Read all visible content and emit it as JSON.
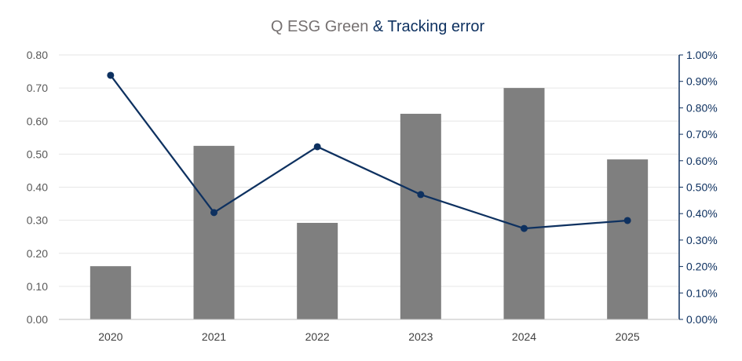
{
  "chart_data": {
    "type": "bar+line",
    "title_part1": "Q ESG Green",
    "title_part2": "& Tracking error",
    "categories": [
      "2020",
      "2021",
      "2022",
      "2023",
      "2024",
      "2025"
    ],
    "series": [
      {
        "type": "bar",
        "axis": "left",
        "color": "#7f7f7f",
        "values": [
          0.161,
          0.525,
          0.292,
          0.622,
          0.7,
          0.484
        ]
      },
      {
        "type": "line",
        "axis": "right",
        "color": "#0e3160",
        "values": [
          0.923,
          0.404,
          0.653,
          0.472,
          0.344,
          0.374
        ]
      }
    ],
    "y_left": {
      "ylim": [
        0,
        0.8
      ],
      "ticks": [
        "0.00",
        "0.10",
        "0.20",
        "0.30",
        "0.40",
        "0.50",
        "0.60",
        "0.70",
        "0.80"
      ]
    },
    "y_right": {
      "ylim": [
        0,
        1.0
      ],
      "unit": "%",
      "ticks": [
        "0.00%",
        "0.10%",
        "0.20%",
        "0.30%",
        "0.40%",
        "0.50%",
        "0.60%",
        "0.70%",
        "0.80%",
        "0.90%",
        "1.00%"
      ]
    },
    "grid": true,
    "colors": {
      "title_gray": "#767171",
      "title_navy": "#0e3160",
      "grid": "#e6e6e6",
      "axis_text_left": "#595959"
    }
  }
}
